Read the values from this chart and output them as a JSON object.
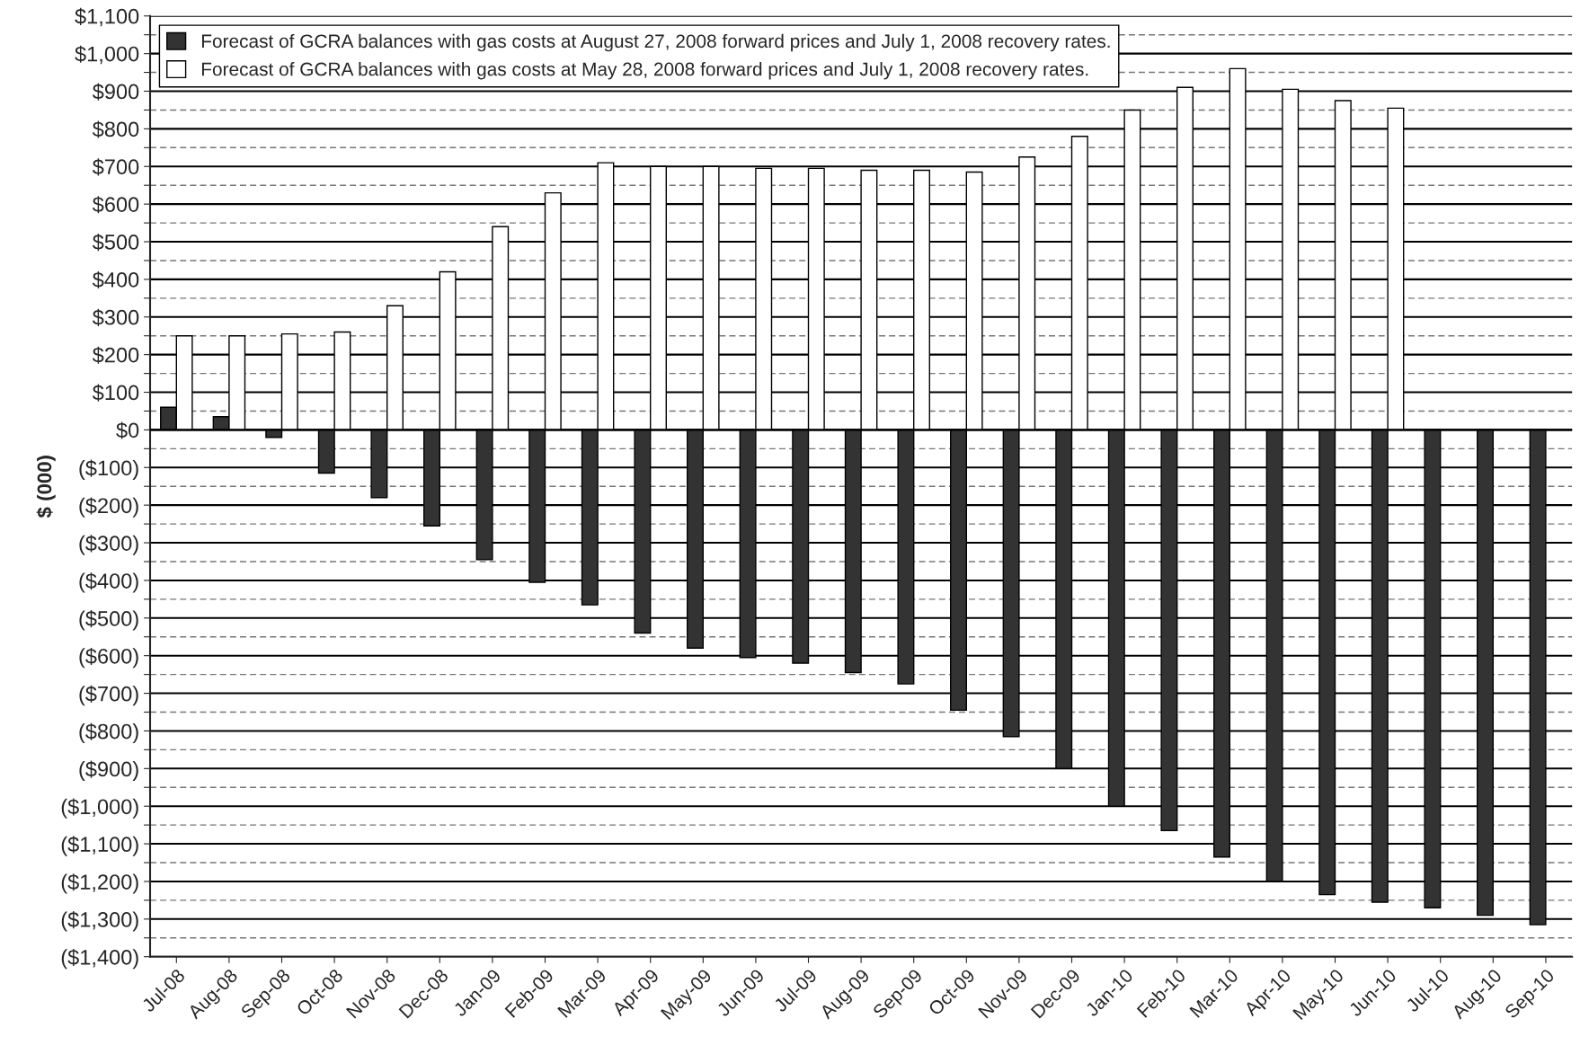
{
  "chart_data": {
    "type": "bar",
    "ylabel": "$ (000)",
    "categories": [
      "Jul-08",
      "Aug-08",
      "Sep-08",
      "Oct-08",
      "Nov-08",
      "Dec-08",
      "Jan-09",
      "Feb-09",
      "Mar-09",
      "Apr-09",
      "May-09",
      "Jun-09",
      "Jul-09",
      "Aug-09",
      "Sep-09",
      "Oct-09",
      "Nov-09",
      "Dec-09",
      "Jan-10",
      "Feb-10",
      "Mar-10",
      "Apr-10",
      "May-10",
      "Jun-10",
      "Jul-10",
      "Aug-10",
      "Sep-10"
    ],
    "series": [
      {
        "name": "Forecast of GCRA balances with gas costs at August 27, 2008 forward prices and July 1, 2008 recovery rates.",
        "color": "#333333",
        "values": [
          60,
          35,
          -20,
          -115,
          -180,
          -255,
          -345,
          -405,
          -465,
          -540,
          -580,
          -605,
          -620,
          -645,
          -675,
          -745,
          -815,
          -900,
          -1000,
          -1065,
          -1135,
          -1200,
          -1235,
          -1255,
          -1270,
          -1290,
          -1315
        ]
      },
      {
        "name": "Forecast of GCRA balances with gas costs at May 28, 2008 forward prices and July 1, 2008 recovery rates.",
        "color": "#ffffff",
        "values": [
          250,
          250,
          255,
          260,
          330,
          420,
          540,
          630,
          710,
          700,
          700,
          695,
          695,
          690,
          690,
          685,
          725,
          780,
          850,
          910,
          960,
          905,
          875,
          855,
          null,
          null,
          null
        ]
      }
    ],
    "ylim": [
      -1400,
      1100
    ],
    "yticks": [
      {
        "value": -1400,
        "label": "($1,400)"
      },
      {
        "value": -1350,
        "label": null
      },
      {
        "value": -1300,
        "label": "($1,300)"
      },
      {
        "value": -1250,
        "label": null
      },
      {
        "value": -1200,
        "label": "($1,200)"
      },
      {
        "value": -1150,
        "label": null
      },
      {
        "value": -1100,
        "label": "($1,100)"
      },
      {
        "value": -1050,
        "label": null
      },
      {
        "value": -1000,
        "label": "($1,000)"
      },
      {
        "value": -950,
        "label": null
      },
      {
        "value": -900,
        "label": "($900)"
      },
      {
        "value": -850,
        "label": null
      },
      {
        "value": -800,
        "label": "($800)"
      },
      {
        "value": -750,
        "label": null
      },
      {
        "value": -700,
        "label": "($700)"
      },
      {
        "value": -650,
        "label": null
      },
      {
        "value": -600,
        "label": "($600)"
      },
      {
        "value": -550,
        "label": null
      },
      {
        "value": -500,
        "label": "($500)"
      },
      {
        "value": -450,
        "label": null
      },
      {
        "value": -400,
        "label": "($400)"
      },
      {
        "value": -350,
        "label": null
      },
      {
        "value": -300,
        "label": "($300)"
      },
      {
        "value": -250,
        "label": null
      },
      {
        "value": -200,
        "label": "($200)"
      },
      {
        "value": -150,
        "label": null
      },
      {
        "value": -100,
        "label": "($100)"
      },
      {
        "value": -50,
        "label": null
      },
      {
        "value": 0,
        "label": "$0"
      },
      {
        "value": 50,
        "label": null
      },
      {
        "value": 100,
        "label": "$100"
      },
      {
        "value": 150,
        "label": null
      },
      {
        "value": 200,
        "label": "$200"
      },
      {
        "value": 250,
        "label": null
      },
      {
        "value": 300,
        "label": "$300"
      },
      {
        "value": 350,
        "label": null
      },
      {
        "value": 400,
        "label": "$400"
      },
      {
        "value": 450,
        "label": null
      },
      {
        "value": 500,
        "label": "$500"
      },
      {
        "value": 550,
        "label": null
      },
      {
        "value": 600,
        "label": "$600"
      },
      {
        "value": 650,
        "label": null
      },
      {
        "value": 700,
        "label": "$700"
      },
      {
        "value": 750,
        "label": null
      },
      {
        "value": 800,
        "label": "$800"
      },
      {
        "value": 850,
        "label": null
      },
      {
        "value": 900,
        "label": "$900"
      },
      {
        "value": 950,
        "label": null
      },
      {
        "value": 1000,
        "label": "$1,000"
      },
      {
        "value": 1050,
        "label": null
      },
      {
        "value": 1100,
        "label": "$1,100"
      }
    ],
    "grid": "y",
    "legend": "top left"
  }
}
